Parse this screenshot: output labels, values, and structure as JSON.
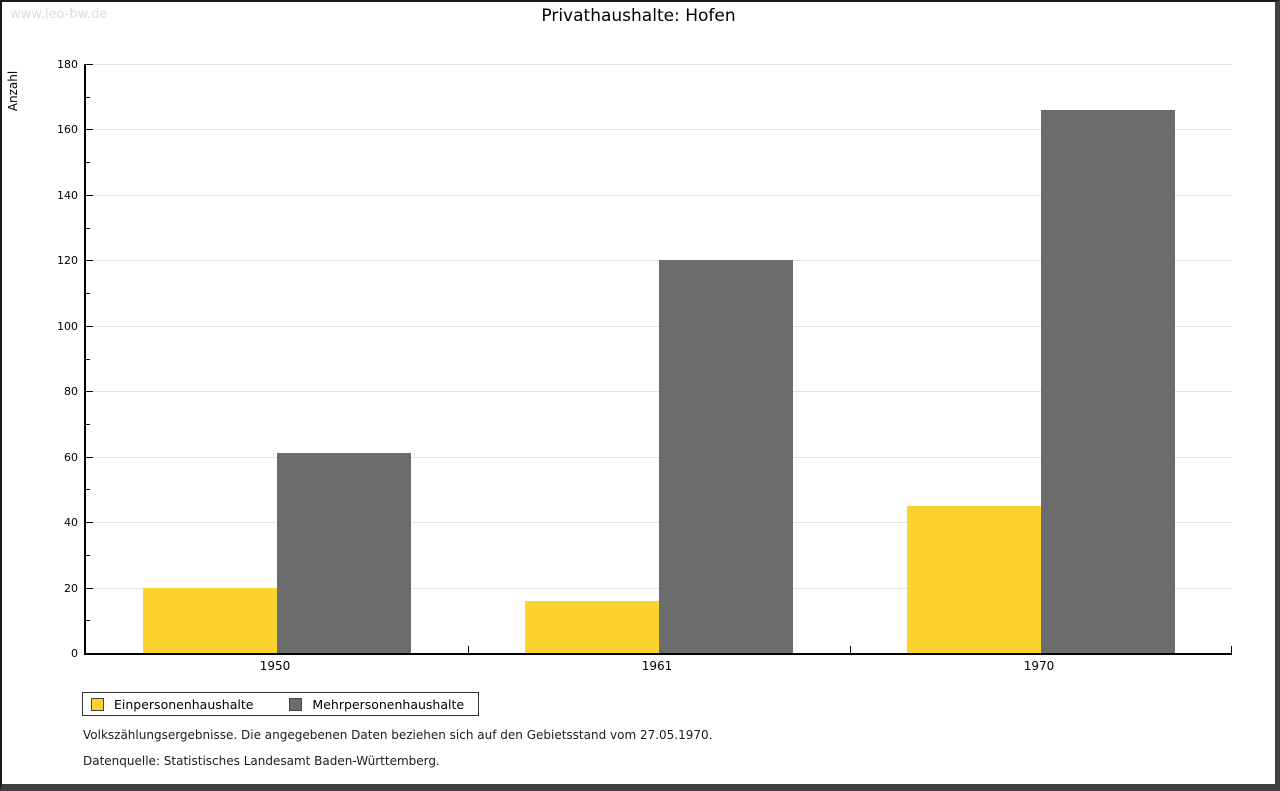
{
  "watermark": "www.leo-bw.de",
  "chart_data": {
    "type": "bar",
    "title": "Privathaushalte: Hofen",
    "xlabel": "",
    "ylabel": "Anzahl",
    "categories": [
      "1950",
      "1961",
      "1970"
    ],
    "series": [
      {
        "name": "Einpersonenhaushalte",
        "color": "#FCD32E",
        "values": [
          20,
          16,
          45
        ]
      },
      {
        "name": "Mehrpersonenhaushalte",
        "color": "#6C6C6C",
        "values": [
          61,
          120,
          166
        ]
      }
    ],
    "ylim": [
      0,
      180
    ],
    "ytick_step": 20,
    "yminor_step": 10,
    "grid": "horizontal-major-only",
    "legend_position": "bottom-left"
  },
  "notes": [
    "Volkszählungsergebnisse. Die angegebenen Daten beziehen sich auf den Gebietsstand vom 27.05.1970.",
    "Datenquelle: Statistisches Landesamt Baden-Württemberg."
  ],
  "colors": {
    "grid": "#e2e2e2",
    "axis": "#000000",
    "watermark": "#dcdcdc"
  }
}
